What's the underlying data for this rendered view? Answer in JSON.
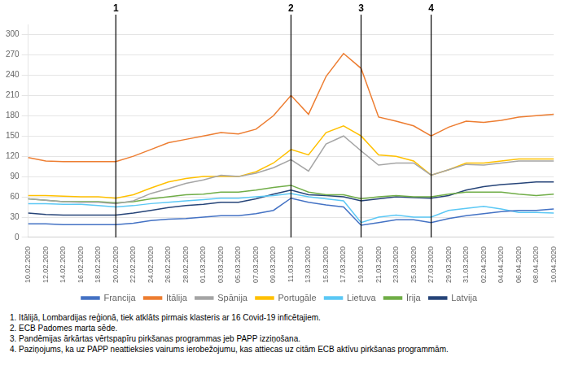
{
  "chart_data": {
    "type": "line",
    "categories": [
      "10.02.2020",
      "12.02.2020",
      "14.02.2020",
      "16.02.2020",
      "18.02.2020",
      "20.02.2020",
      "22.02.2020",
      "24.02.2020",
      "26.02.2020",
      "28.02.2020",
      "01.03.2020",
      "03.03.2020",
      "05.03.2020",
      "07.03.2020",
      "09.03.2020",
      "11.03.2020",
      "13.03.2020",
      "15.03.2020",
      "17.03.2020",
      "19.03.2020",
      "21.03.2020",
      "23.03.2020",
      "25.03.2020",
      "27.03.2020",
      "29.03.2020",
      "31.03.2020",
      "02.04.2020",
      "04.04.2020",
      "06.04.2020",
      "08.04.2020",
      "10.04.2020"
    ],
    "series": [
      {
        "name": "Francija",
        "color": "#4472C4",
        "values": [
          20,
          20,
          19,
          19,
          19,
          19,
          21,
          25,
          27,
          28,
          30,
          32,
          32,
          35,
          40,
          58,
          52,
          48,
          45,
          18,
          22,
          26,
          26,
          22,
          28,
          32,
          35,
          38,
          40,
          40,
          42
        ]
      },
      {
        "name": "Itālija",
        "color": "#ED7D31",
        "values": [
          118,
          113,
          112,
          112,
          112,
          112,
          120,
          130,
          140,
          145,
          150,
          155,
          153,
          160,
          180,
          210,
          182,
          238,
          272,
          250,
          178,
          172,
          165,
          150,
          163,
          172,
          170,
          173,
          178,
          180,
          182
        ]
      },
      {
        "name": "Spānija",
        "color": "#A5A5A5",
        "values": [
          57,
          55,
          53,
          52,
          52,
          50,
          54,
          65,
          72,
          80,
          85,
          92,
          90,
          95,
          103,
          115,
          98,
          138,
          150,
          128,
          107,
          110,
          110,
          92,
          100,
          108,
          107,
          110,
          113,
          113,
          113
        ]
      },
      {
        "name": "Portugāle",
        "color": "#FFC000",
        "values": [
          62,
          62,
          61,
          60,
          60,
          58,
          63,
          73,
          82,
          87,
          90,
          90,
          90,
          97,
          110,
          130,
          122,
          155,
          165,
          150,
          122,
          120,
          113,
          92,
          100,
          110,
          110,
          113,
          116,
          116,
          116
        ]
      },
      {
        "name": "Lietuva",
        "color": "#5BC8F5",
        "values": [
          50,
          50,
          49,
          49,
          47,
          45,
          47,
          50,
          52,
          54,
          56,
          58,
          58,
          60,
          62,
          65,
          60,
          57,
          54,
          22,
          30,
          33,
          30,
          30,
          40,
          43,
          46,
          42,
          37,
          37,
          36
        ]
      },
      {
        "name": "Īrija",
        "color": "#70AD47",
        "values": [
          57,
          55,
          53,
          53,
          53,
          51,
          53,
          57,
          60,
          63,
          64,
          67,
          67,
          70,
          74,
          77,
          67,
          63,
          63,
          57,
          60,
          62,
          60,
          60,
          64,
          67,
          67,
          67,
          64,
          62,
          64
        ]
      },
      {
        "name": "Latvija",
        "color": "#264478",
        "values": [
          36,
          34,
          33,
          33,
          33,
          33,
          36,
          40,
          44,
          47,
          49,
          52,
          52,
          57,
          64,
          70,
          63,
          62,
          60,
          54,
          57,
          60,
          59,
          58,
          62,
          70,
          75,
          78,
          80,
          82,
          82
        ]
      }
    ],
    "annotations": [
      {
        "x": "20.02.2020",
        "label": "1"
      },
      {
        "x": "11.03.2020",
        "label": "2"
      },
      {
        "x": "19.03.2020",
        "label": "3"
      },
      {
        "x": "27.03.2020",
        "label": "4"
      }
    ],
    "footnotes": [
      "1. Itālijā, Lombardijas reģionā, tiek atklāts pirmais klasteris ar 16 Covid-19 inficētajiem.",
      "2. ECB Padomes marta sēde.",
      "3. Pandēmijas ārkārtas vērtspapīru pirkšanas programmas jeb PAPP izziņošana.",
      "4. Paziņojums, ka uz PAPP neattieksies vairums ierobežojumu, kas attiecas uz citām ECB aktīvu pirkšanas programmām."
    ],
    "ylim": [
      0,
      315
    ],
    "yticks": [
      0,
      30,
      60,
      90,
      120,
      150,
      180,
      210,
      240,
      270,
      300
    ],
    "grid": true,
    "legend": "bottom"
  }
}
